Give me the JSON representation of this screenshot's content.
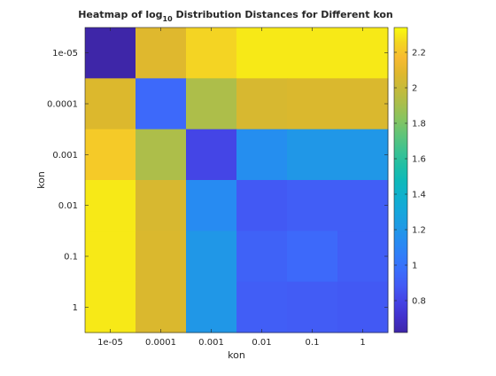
{
  "chart_data": {
    "type": "heatmap",
    "title": {
      "prefix": "Heatmap of log",
      "subscript": "10",
      "suffix": " Distribution Distances for Different kon"
    },
    "xlabel": "kon",
    "ylabel": "kon",
    "x_categories": [
      "1e-05",
      "0.0001",
      "0.001",
      "0.01",
      "0.1",
      "1"
    ],
    "y_categories": [
      "1e-05",
      "0.0001",
      "0.001",
      "0.01",
      "0.1",
      "1"
    ],
    "values": [
      [
        0.62,
        2.08,
        2.25,
        2.3,
        2.3,
        2.3
      ],
      [
        2.07,
        0.95,
        1.92,
        2.05,
        2.06,
        2.06
      ],
      [
        2.22,
        1.92,
        0.8,
        1.15,
        1.2,
        1.2
      ],
      [
        2.3,
        2.05,
        1.13,
        0.88,
        0.9,
        0.9
      ],
      [
        2.3,
        2.06,
        1.2,
        0.92,
        0.95,
        0.9
      ],
      [
        2.3,
        2.06,
        1.2,
        0.9,
        0.89,
        0.88
      ]
    ],
    "colorbar": {
      "colormap": "parula",
      "range": [
        0.62,
        2.34
      ],
      "ticks": [
        0.8,
        1,
        1.2,
        1.4,
        1.6,
        1.8,
        2,
        2.2
      ],
      "tick_labels": [
        "0.8",
        "1",
        "1.2",
        "1.4",
        "1.6",
        "1.8",
        "2",
        "2.2"
      ]
    }
  }
}
